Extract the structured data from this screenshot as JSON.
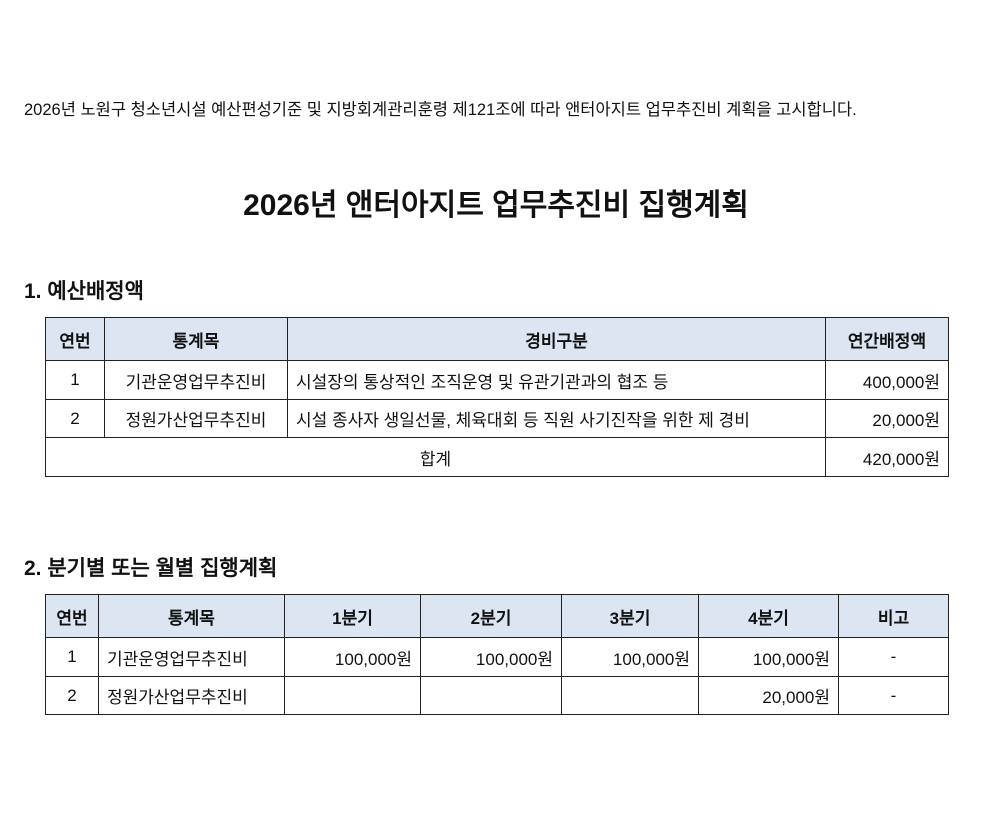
{
  "notice": "2026년 노원구 청소년시설 예산편성기준 및 지방회계관리훈령 제121조에 따라 앤터아지트 업무추진비 계획을 고시합니다.",
  "title": "2026년 앤터아지트 업무추진비 집행계획",
  "section1": {
    "heading": "1. 예산배정액",
    "headers": [
      "연번",
      "통계목",
      "경비구분",
      "연간배정액"
    ],
    "rows": [
      [
        "1",
        "기관운영업무추진비",
        "시설장의 통상적인 조직운영 및 유관기관과의 협조 등",
        "400,000원"
      ],
      [
        "2",
        "정원가산업무추진비",
        "시설 종사자 생일선물, 체육대회 등 직원 사기진작을 위한 제 경비",
        "20,000원"
      ]
    ],
    "total_label": "합계",
    "total_value": "420,000원"
  },
  "section2": {
    "heading": "2. 분기별 또는 월별 집행계획",
    "headers": [
      "연번",
      "통계목",
      "1분기",
      "2분기",
      "3분기",
      "4분기",
      "비고"
    ],
    "rows": [
      [
        "1",
        "기관운영업무추진비",
        "100,000원",
        "100,000원",
        "100,000원",
        "100,000원",
        "-"
      ],
      [
        "2",
        "정원가산업무추진비",
        "",
        "",
        "",
        "20,000원",
        "-"
      ]
    ]
  }
}
